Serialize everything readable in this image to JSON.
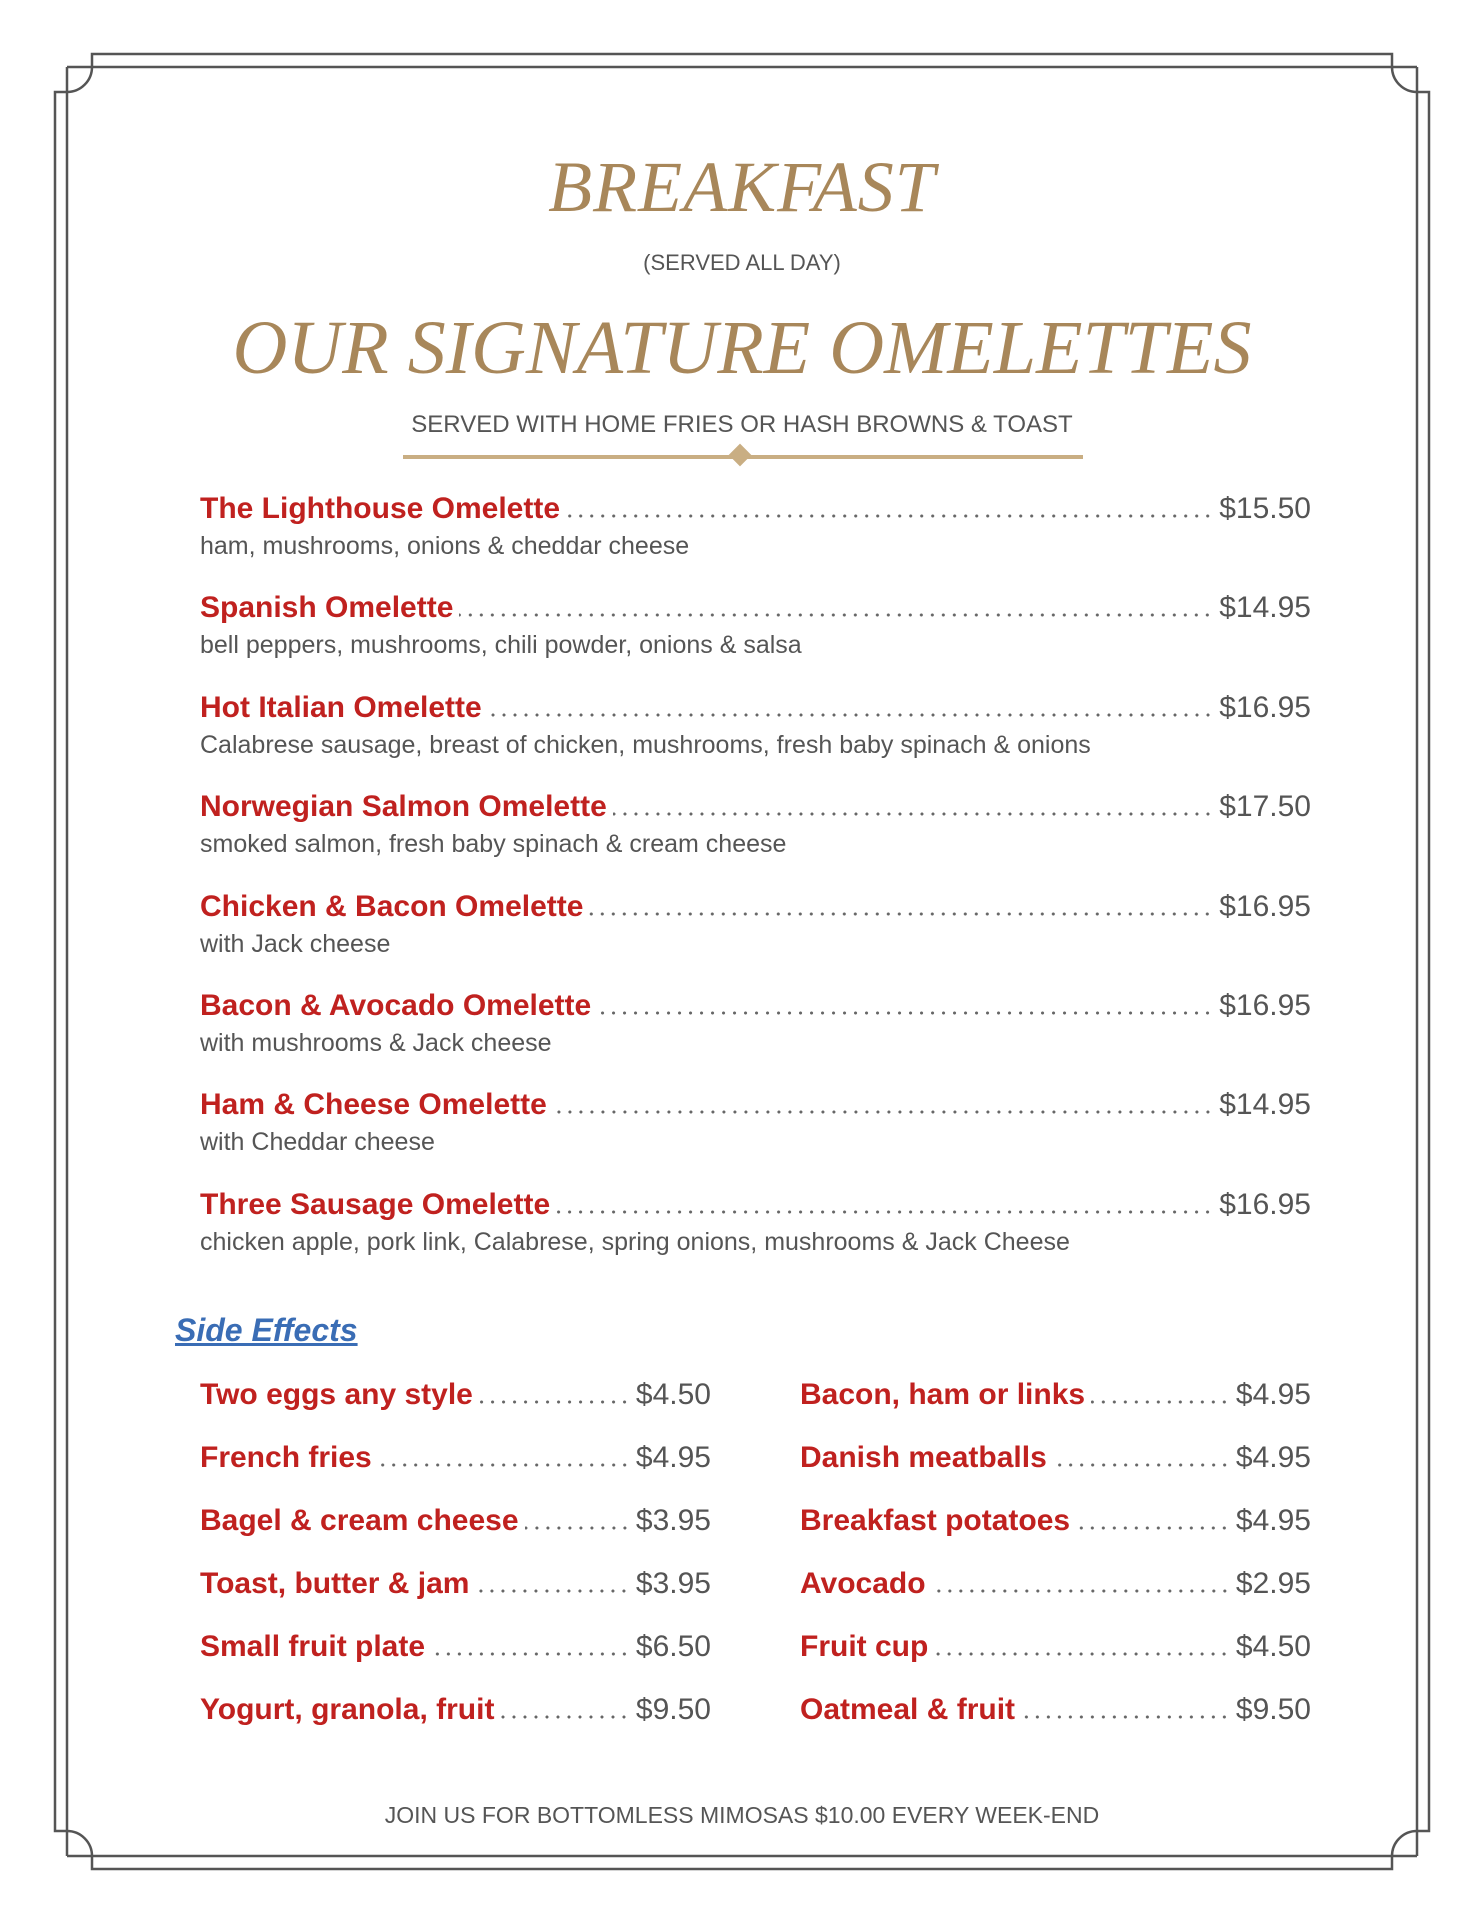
{
  "header": {
    "title": "BREAKFAST",
    "subtitle": "(SERVED ALL DAY)"
  },
  "section": {
    "title": "OUR SIGNATURE OMELETTES",
    "subtitle": "SERVED WITH HOME FRIES OR HASH BROWNS & TOAST"
  },
  "omelettes": [
    {
      "name": "The Lighthouse Omelette",
      "price": "$15.50",
      "desc": "ham, mushrooms, onions & cheddar cheese"
    },
    {
      "name": "Spanish Omelette",
      "price": "$14.95",
      "desc": "bell peppers, mushrooms, chili powder, onions & salsa"
    },
    {
      "name": "Hot Italian Omelette",
      "price": "$16.95",
      "desc": "Calabrese sausage, breast of chicken, mushrooms, fresh baby spinach & onions"
    },
    {
      "name": "Norwegian Salmon Omelette",
      "price": "$17.50",
      "desc": "smoked salmon, fresh baby spinach & cream cheese"
    },
    {
      "name": "Chicken & Bacon Omelette",
      "price": "$16.95",
      "desc": "with Jack cheese"
    },
    {
      "name": "Bacon & Avocado Omelette",
      "price": "$16.95",
      "desc": "with mushrooms & Jack cheese"
    },
    {
      "name": "Ham & Cheese Omelette",
      "price": "$14.95",
      "desc": "with Cheddar cheese"
    },
    {
      "name": "Three Sausage Omelette",
      "price": "$16.95",
      "desc": "chicken apple, pork link, Calabrese, spring onions, mushrooms & Jack Cheese"
    }
  ],
  "sides": {
    "title": "Side Effects",
    "left": [
      {
        "name": "Two eggs any style",
        "price": "$4.50"
      },
      {
        "name": "French fries",
        "price": "$4.95"
      },
      {
        "name": "Bagel & cream cheese",
        "price": "$3.95"
      },
      {
        "name": "Toast, butter & jam",
        "price": "$3.95"
      },
      {
        "name": "Small fruit plate",
        "price": "$6.50"
      },
      {
        "name": "Yogurt, granola, fruit",
        "price": "$9.50"
      }
    ],
    "right": [
      {
        "name": "Bacon, ham or links",
        "price": "$4.95"
      },
      {
        "name": "Danish meatballs",
        "price": "$4.95"
      },
      {
        "name": "Breakfast potatoes",
        "price": "$4.95"
      },
      {
        "name": "Avocado",
        "price": "$2.95"
      },
      {
        "name": "Fruit cup",
        "price": "$4.50"
      },
      {
        "name": "Oatmeal & fruit",
        "price": "$9.50"
      }
    ]
  },
  "footer": "JOIN US FOR BOTTOMLESS MIMOSAS $10.00 EVERY WEEK-END",
  "colors": {
    "gold": "#a8875a",
    "item_red": "#c0211f",
    "text_gray": "#555555",
    "link_blue": "#3a6db5",
    "frame": "#555555"
  }
}
